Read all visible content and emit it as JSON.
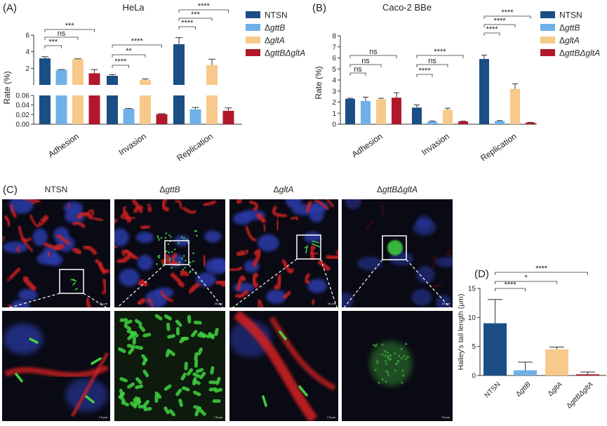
{
  "panels": {
    "A": {
      "label": "(A)",
      "title": "HeLa"
    },
    "B": {
      "label": "(B)",
      "title": "Caco-2 BBe"
    },
    "C": {
      "label": "(C)"
    },
    "D": {
      "label": "(D)"
    }
  },
  "legend": {
    "entries": [
      {
        "name": "NTSN",
        "prefix": "",
        "italic": "",
        "color": "#1b4e85"
      },
      {
        "name": "ΔgttB",
        "prefix": "Δ",
        "italic": "gttB",
        "color": "#6fb0e8"
      },
      {
        "name": "ΔgltA",
        "prefix": "Δ",
        "italic": "gltA",
        "color": "#f7c98a"
      },
      {
        "name": "ΔgttBΔgltA",
        "prefix": "Δ",
        "italic": "gttBΔgltA",
        "color": "#b2182b"
      }
    ]
  },
  "microscopy": {
    "columns": [
      {
        "prefix": "",
        "italic": "",
        "label": "NTSN"
      },
      {
        "prefix": "Δ",
        "italic": "gttB",
        "label": "ΔgttB"
      },
      {
        "prefix": "Δ",
        "italic": "gltA",
        "label": "ΔgltA"
      },
      {
        "prefix": "Δ",
        "italic": "gttBΔgltA",
        "label": "ΔgttBΔgltA"
      }
    ],
    "scale_top": "10 μm",
    "scale_bottom": "7.5 μm",
    "channel_colors": {
      "actin": "#d42020",
      "nuclei": "#2a3aa8",
      "bacteria": "#3fd23f",
      "background": "#0a0a14"
    }
  },
  "chart_data": [
    {
      "id": "A",
      "type": "bar",
      "title": "HeLa",
      "ylabel": "Rate (%)",
      "axis_break": true,
      "lower_ylim": [
        0,
        0.06
      ],
      "upper_ylim": [
        0,
        6
      ],
      "lower_ticks": [
        "0.00",
        "0.02",
        "0.04",
        "0.06"
      ],
      "upper_ticks": [
        "2",
        "4",
        "6"
      ],
      "categories": [
        "Adhesion",
        "Invasion",
        "Replication"
      ],
      "series": [
        {
          "name": "NTSN",
          "values": [
            3.2,
            1.1,
            4.9
          ],
          "errors": [
            0.2,
            0.15,
            0.8
          ]
        },
        {
          "name": "ΔgttB",
          "values": [
            1.8,
            0.032,
            0.031
          ],
          "errors": [
            0.05,
            0.001,
            0.004
          ]
        },
        {
          "name": "ΔgltA",
          "values": [
            3.1,
            0.6,
            2.4
          ],
          "errors": [
            0.05,
            0.12,
            0.7
          ]
        },
        {
          "name": "ΔgttBΔgltA",
          "values": [
            1.4,
            0.021,
            0.028
          ],
          "errors": [
            0.45,
            0.001,
            0.006
          ]
        }
      ],
      "significance": [
        {
          "category": "Adhesion",
          "from": 0,
          "to": 1,
          "label": "***"
        },
        {
          "category": "Adhesion",
          "from": 0,
          "to": 2,
          "label": "ns"
        },
        {
          "category": "Adhesion",
          "from": 0,
          "to": 3,
          "label": "***"
        },
        {
          "category": "Invasion",
          "from": 0,
          "to": 1,
          "label": "****"
        },
        {
          "category": "Invasion",
          "from": 0,
          "to": 2,
          "label": "**"
        },
        {
          "category": "Invasion",
          "from": 0,
          "to": 3,
          "label": "****"
        },
        {
          "category": "Replication",
          "from": 0,
          "to": 1,
          "label": "****"
        },
        {
          "category": "Replication",
          "from": 0,
          "to": 2,
          "label": "***"
        },
        {
          "category": "Replication",
          "from": 0,
          "to": 3,
          "label": "****"
        }
      ]
    },
    {
      "id": "B",
      "type": "bar",
      "title": "Caco-2 BBe",
      "ylabel": "Rate (%)",
      "ylim": [
        0,
        8
      ],
      "ticks": [
        "0",
        "1",
        "2",
        "3",
        "4",
        "5",
        "6",
        "7",
        "8"
      ],
      "categories": [
        "Adhesion",
        "Invasion",
        "Replication"
      ],
      "series": [
        {
          "name": "NTSN",
          "values": [
            2.3,
            1.5,
            5.9
          ],
          "errors": [
            0.05,
            0.25,
            0.35
          ]
        },
        {
          "name": "ΔgttB",
          "values": [
            2.1,
            0.25,
            0.3
          ],
          "errors": [
            0.35,
            0.04,
            0.03
          ]
        },
        {
          "name": "ΔgltA",
          "values": [
            2.25,
            1.3,
            3.2
          ],
          "errors": [
            0.1,
            0.15,
            0.45
          ]
        },
        {
          "name": "ΔgttBΔgltA",
          "values": [
            2.4,
            0.25,
            0.15
          ],
          "errors": [
            0.45,
            0.03,
            0.02
          ]
        }
      ],
      "significance": [
        {
          "category": "Adhesion",
          "from": 0,
          "to": 1,
          "label": "ns"
        },
        {
          "category": "Adhesion",
          "from": 0,
          "to": 2,
          "label": "ns"
        },
        {
          "category": "Adhesion",
          "from": 0,
          "to": 3,
          "label": "ns"
        },
        {
          "category": "Invasion",
          "from": 0,
          "to": 1,
          "label": "****"
        },
        {
          "category": "Invasion",
          "from": 0,
          "to": 2,
          "label": "ns"
        },
        {
          "category": "Invasion",
          "from": 0,
          "to": 3,
          "label": "****"
        },
        {
          "category": "Replication",
          "from": 0,
          "to": 1,
          "label": "****"
        },
        {
          "category": "Replication",
          "from": 0,
          "to": 2,
          "label": "****"
        },
        {
          "category": "Replication",
          "from": 0,
          "to": 3,
          "label": "****"
        }
      ]
    },
    {
      "id": "D",
      "type": "bar",
      "ylabel": "Halley's tail length (μm)",
      "ylim": [
        0,
        15
      ],
      "ticks": [
        "0",
        "5",
        "10",
        "15"
      ],
      "categories": [
        "NTSN",
        "ΔgttB",
        "ΔgltA",
        "ΔgttBΔgltA"
      ],
      "values": [
        9.0,
        0.9,
        4.5,
        0.2
      ],
      "errors": [
        4.1,
        1.4,
        0.4,
        0.4
      ],
      "colors": [
        "#1b4e85",
        "#6fb0e8",
        "#f7c98a",
        "#b2182b"
      ],
      "significance": [
        {
          "from": 0,
          "to": 1,
          "label": "****"
        },
        {
          "from": 0,
          "to": 2,
          "label": "*"
        },
        {
          "from": 0,
          "to": 3,
          "label": "****"
        }
      ]
    }
  ]
}
